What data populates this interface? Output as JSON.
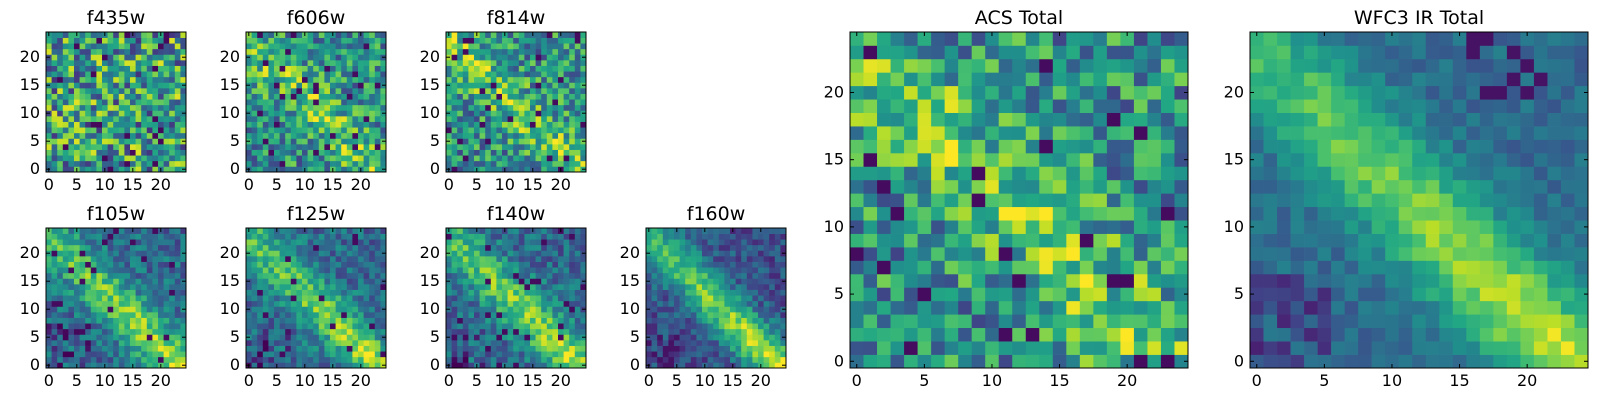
{
  "chart_data": [
    {
      "type": "heatmap",
      "title": "f435w",
      "colormap": "viridis",
      "x_ticks": [
        "0",
        "5",
        "10",
        "15",
        "20"
      ],
      "y_ticks": [
        "0",
        "5",
        "10",
        "15",
        "20"
      ],
      "grid_size": 25,
      "pattern": "noise",
      "seed": 11
    },
    {
      "type": "heatmap",
      "title": "f606w",
      "colormap": "viridis",
      "x_ticks": [
        "0",
        "5",
        "10",
        "15",
        "20"
      ],
      "y_ticks": [
        "0",
        "5",
        "10",
        "15",
        "20"
      ],
      "grid_size": 25,
      "pattern": "noise-faint-band",
      "seed": 23
    },
    {
      "type": "heatmap",
      "title": "f814w",
      "colormap": "viridis",
      "x_ticks": [
        "0",
        "5",
        "10",
        "15",
        "20"
      ],
      "y_ticks": [
        "0",
        "5",
        "10",
        "15",
        "20"
      ],
      "grid_size": 25,
      "pattern": "noise-faint-band",
      "seed": 37
    },
    {
      "type": "heatmap",
      "title": "f105w",
      "colormap": "viridis",
      "x_ticks": [
        "0",
        "5",
        "10",
        "15",
        "20"
      ],
      "y_ticks": [
        "0",
        "5",
        "10",
        "15",
        "20"
      ],
      "grid_size": 25,
      "pattern": "band",
      "seed": 41
    },
    {
      "type": "heatmap",
      "title": "f125w",
      "colormap": "viridis",
      "x_ticks": [
        "0",
        "5",
        "10",
        "15",
        "20"
      ],
      "y_ticks": [
        "0",
        "5",
        "10",
        "15",
        "20"
      ],
      "grid_size": 25,
      "pattern": "band",
      "seed": 53
    },
    {
      "type": "heatmap",
      "title": "f140w",
      "colormap": "viridis",
      "x_ticks": [
        "0",
        "5",
        "10",
        "15",
        "20"
      ],
      "y_ticks": [
        "0",
        "5",
        "10",
        "15",
        "20"
      ],
      "grid_size": 25,
      "pattern": "band",
      "seed": 67
    },
    {
      "type": "heatmap",
      "title": "f160w",
      "colormap": "viridis",
      "x_ticks": [
        "0",
        "5",
        "10",
        "15",
        "20"
      ],
      "y_ticks": [
        "0",
        "5",
        "10",
        "15",
        "20"
      ],
      "grid_size": 25,
      "pattern": "band-strong",
      "seed": 79
    },
    {
      "type": "heatmap",
      "title": "ACS Total",
      "colormap": "viridis",
      "x_ticks": [
        "0",
        "5",
        "10",
        "15",
        "20"
      ],
      "y_ticks": [
        "0",
        "5",
        "10",
        "15",
        "20"
      ],
      "grid_size": 25,
      "pattern": "noise-faint-band",
      "seed": 83
    },
    {
      "type": "heatmap",
      "title": "WFC3 IR Total",
      "colormap": "viridis",
      "x_ticks": [
        "0",
        "5",
        "10",
        "15",
        "20"
      ],
      "y_ticks": [
        "0",
        "5",
        "10",
        "15",
        "20"
      ],
      "grid_size": 25,
      "pattern": "band-smooth",
      "seed": 97
    }
  ]
}
